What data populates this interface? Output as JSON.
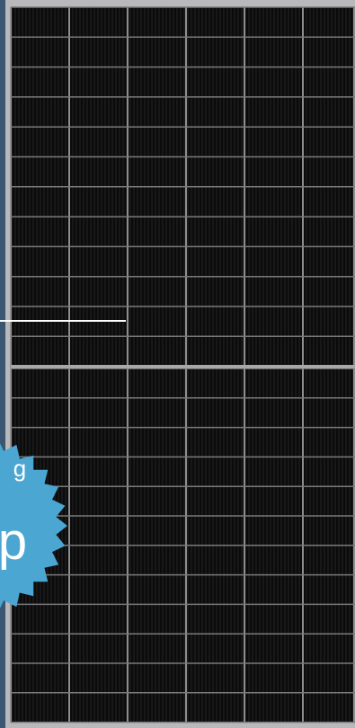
{
  "badge": {
    "line1": "g",
    "line2": "p"
  }
}
